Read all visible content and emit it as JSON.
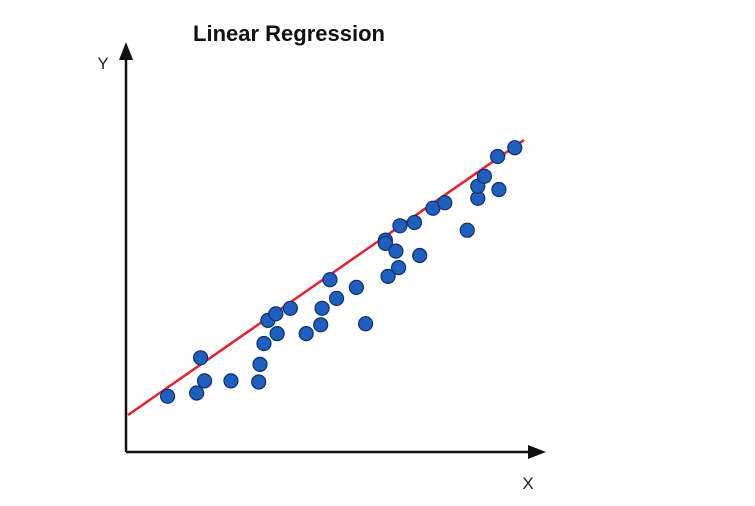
{
  "chart_data": {
    "type": "scatter",
    "title": "Linear Regression",
    "xlabel": "X",
    "ylabel": "Y",
    "points": [
      {
        "x": 3.0,
        "y": 0.7
      },
      {
        "x": 5.5,
        "y": 4.2
      },
      {
        "x": 5.8,
        "y": 2.1
      },
      {
        "x": 7.8,
        "y": 2.1
      },
      {
        "x": 5.2,
        "y": 1.0
      },
      {
        "x": 9.9,
        "y": 2.0
      },
      {
        "x": 10.0,
        "y": 3.6
      },
      {
        "x": 10.3,
        "y": 5.5
      },
      {
        "x": 10.6,
        "y": 7.6
      },
      {
        "x": 12.3,
        "y": 8.7
      },
      {
        "x": 11.2,
        "y": 8.2
      },
      {
        "x": 11.3,
        "y": 6.4
      },
      {
        "x": 13.5,
        "y": 6.4
      },
      {
        "x": 14.7,
        "y": 8.7
      },
      {
        "x": 14.6,
        "y": 7.2
      },
      {
        "x": 15.3,
        "y": 11.3
      },
      {
        "x": 15.8,
        "y": 9.6
      },
      {
        "x": 17.3,
        "y": 10.6
      },
      {
        "x": 18.0,
        "y": 7.3
      },
      {
        "x": 19.5,
        "y": 14.9
      },
      {
        "x": 19.5,
        "y": 14.6
      },
      {
        "x": 20.3,
        "y": 13.9
      },
      {
        "x": 20.5,
        "y": 12.4
      },
      {
        "x": 21.7,
        "y": 16.5
      },
      {
        "x": 19.7,
        "y": 11.6
      },
      {
        "x": 22.1,
        "y": 13.5
      },
      {
        "x": 20.6,
        "y": 16.2
      },
      {
        "x": 23.1,
        "y": 17.8
      },
      {
        "x": 24.0,
        "y": 18.3
      },
      {
        "x": 25.7,
        "y": 15.8
      },
      {
        "x": 26.5,
        "y": 18.7
      },
      {
        "x": 26.5,
        "y": 19.8
      },
      {
        "x": 27.0,
        "y": 20.7
      },
      {
        "x": 28.1,
        "y": 19.5
      },
      {
        "x": 28.0,
        "y": 22.5
      },
      {
        "x": 29.3,
        "y": 23.3
      }
    ],
    "regression_line": {
      "x": [
        0,
        30
      ],
      "y": [
        -1.0,
        24.0
      ]
    },
    "xlim": [
      0,
      30
    ],
    "ylim": [
      -3,
      28
    ],
    "grid": false,
    "colors": {
      "points": "#1f5fbf",
      "point_stroke": "#0f2f66",
      "line": "#e8212e",
      "axes": "#111111"
    }
  }
}
